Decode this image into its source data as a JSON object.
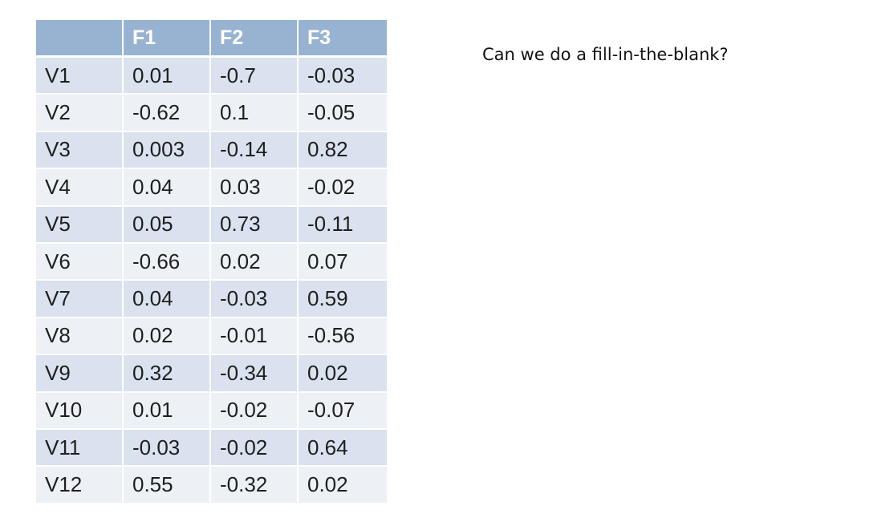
{
  "table": {
    "headers": [
      "",
      "F1",
      "F2",
      "F3"
    ],
    "rows": [
      [
        "V1",
        "0.01",
        "-0.7",
        "-0.03"
      ],
      [
        "V2",
        "-0.62",
        "0.1",
        "-0.05"
      ],
      [
        "V3",
        "0.003",
        "-0.14",
        "0.82"
      ],
      [
        "V4",
        "0.04",
        "0.03",
        "-0.02"
      ],
      [
        "V5",
        "0.05",
        "0.73",
        "-0.11"
      ],
      [
        "V6",
        "-0.66",
        "0.02",
        "0.07"
      ],
      [
        "V7",
        "0.04",
        "-0.03",
        "0.59"
      ],
      [
        "V8",
        "0.02",
        "-0.01",
        "-0.56"
      ],
      [
        "V9",
        "0.32",
        "-0.34",
        "0.02"
      ],
      [
        "V10",
        "0.01",
        "-0.02",
        "-0.07"
      ],
      [
        "V11",
        "-0.03",
        "-0.02",
        "0.64"
      ],
      [
        "V12",
        "0.55",
        "-0.32",
        "0.02"
      ]
    ]
  },
  "prompt": "Can we do a fill-in-the-blank?",
  "colors": {
    "header_bg": "#98b3d1",
    "header_text": "#ffffff",
    "row_band_dark": "#d9e2ee",
    "row_band_light": "#edf1f6",
    "cell_text": "#1f1f1f"
  }
}
